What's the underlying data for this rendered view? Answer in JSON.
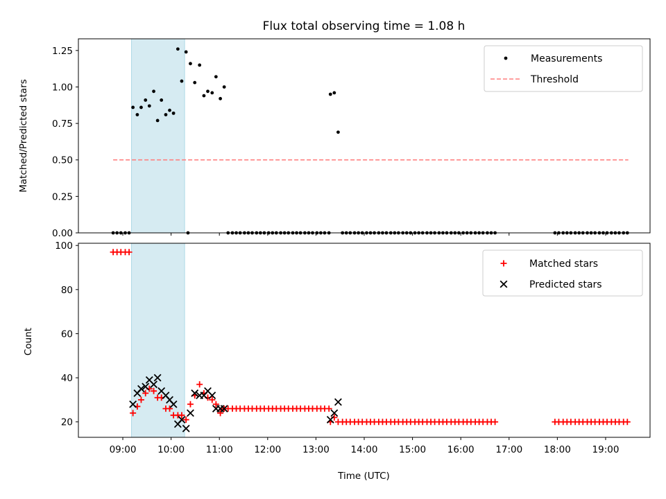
{
  "colors": {
    "shade": "#add8e6",
    "matched": "#ff0000",
    "predicted": "#000000",
    "threshold": "#ff7f7f",
    "measurement": "#000000"
  },
  "chart_data": [
    {
      "type": "scatter",
      "title": "Flux total observing time = 1.08 h",
      "ylabel": "Matched/Predicted stars",
      "ylim": [
        0,
        1.33
      ],
      "yticks": [
        "0.00",
        "0.25",
        "0.50",
        "0.75",
        "1.00",
        "1.25"
      ],
      "shaded_span": [
        9.18,
        10.28
      ],
      "legend_position": "upper right",
      "legend": [
        "Measurements",
        "Threshold"
      ],
      "threshold": {
        "name": "Threshold",
        "value": 0.5,
        "x_range": [
          8.8,
          19.47
        ]
      },
      "series": [
        {
          "name": "Measurements",
          "points": [
            [
              8.8,
              0
            ],
            [
              8.88,
              0
            ],
            [
              8.96,
              0
            ],
            [
              9.05,
              0
            ],
            [
              9.13,
              0
            ],
            [
              9.21,
              0.86
            ],
            [
              9.3,
              0.81
            ],
            [
              9.38,
              0.86
            ],
            [
              9.47,
              0.91
            ],
            [
              9.55,
              0.87
            ],
            [
              9.64,
              0.97
            ],
            [
              9.72,
              0.77
            ],
            [
              9.8,
              0.91
            ],
            [
              9.89,
              0.81
            ],
            [
              9.97,
              0.84
            ],
            [
              10.05,
              0.82
            ],
            [
              10.14,
              1.26
            ],
            [
              10.22,
              1.04
            ],
            [
              10.31,
              1.24
            ],
            [
              10.35,
              0
            ],
            [
              10.4,
              1.16
            ],
            [
              10.49,
              1.03
            ],
            [
              10.59,
              1.15
            ],
            [
              10.68,
              0.94
            ],
            [
              10.76,
              0.97
            ],
            [
              10.85,
              0.96
            ],
            [
              10.93,
              1.07
            ],
            [
              11.02,
              0.92
            ],
            [
              11.1,
              1.0
            ],
            [
              11.18,
              0
            ],
            [
              11.27,
              0
            ],
            [
              11.35,
              0
            ],
            [
              11.43,
              0
            ],
            [
              11.52,
              0
            ],
            [
              11.6,
              0
            ],
            [
              11.68,
              0
            ],
            [
              11.77,
              0
            ],
            [
              11.85,
              0
            ],
            [
              11.93,
              0
            ],
            [
              12.02,
              0
            ],
            [
              12.1,
              0
            ],
            [
              12.18,
              0
            ],
            [
              12.27,
              0
            ],
            [
              12.35,
              0
            ],
            [
              12.43,
              0
            ],
            [
              12.52,
              0
            ],
            [
              12.6,
              0
            ],
            [
              12.68,
              0
            ],
            [
              12.77,
              0
            ],
            [
              12.85,
              0
            ],
            [
              12.93,
              0
            ],
            [
              13.02,
              0
            ],
            [
              13.1,
              0
            ],
            [
              13.18,
              0
            ],
            [
              13.27,
              0
            ],
            [
              13.3,
              0.95
            ],
            [
              13.38,
              0.96
            ],
            [
              13.46,
              0.69
            ],
            [
              13.55,
              0
            ],
            [
              13.63,
              0
            ],
            [
              13.71,
              0
            ],
            [
              13.8,
              0
            ],
            [
              13.88,
              0
            ],
            [
              13.96,
              0
            ],
            [
              14.05,
              0
            ],
            [
              14.13,
              0
            ],
            [
              14.21,
              0
            ],
            [
              14.3,
              0
            ],
            [
              14.38,
              0
            ],
            [
              14.46,
              0
            ],
            [
              14.55,
              0
            ],
            [
              14.63,
              0
            ],
            [
              14.71,
              0
            ],
            [
              14.8,
              0
            ],
            [
              14.88,
              0
            ],
            [
              14.96,
              0
            ],
            [
              15.05,
              0
            ],
            [
              15.13,
              0
            ],
            [
              15.21,
              0
            ],
            [
              15.3,
              0
            ],
            [
              15.38,
              0
            ],
            [
              15.46,
              0
            ],
            [
              15.55,
              0
            ],
            [
              15.63,
              0
            ],
            [
              15.71,
              0
            ],
            [
              15.8,
              0
            ],
            [
              15.88,
              0
            ],
            [
              15.96,
              0
            ],
            [
              16.05,
              0
            ],
            [
              16.13,
              0
            ],
            [
              16.21,
              0
            ],
            [
              16.3,
              0
            ],
            [
              16.38,
              0
            ],
            [
              16.46,
              0
            ],
            [
              16.55,
              0
            ],
            [
              16.63,
              0
            ],
            [
              16.71,
              0
            ],
            [
              17.95,
              0
            ],
            [
              18.03,
              0
            ],
            [
              18.12,
              0
            ],
            [
              18.2,
              0
            ],
            [
              18.28,
              0
            ],
            [
              18.37,
              0
            ],
            [
              18.45,
              0
            ],
            [
              18.53,
              0
            ],
            [
              18.62,
              0
            ],
            [
              18.7,
              0
            ],
            [
              18.78,
              0
            ],
            [
              18.87,
              0
            ],
            [
              18.95,
              0
            ],
            [
              19.03,
              0
            ],
            [
              19.12,
              0
            ],
            [
              19.2,
              0
            ],
            [
              19.28,
              0
            ],
            [
              19.37,
              0
            ],
            [
              19.45,
              0
            ]
          ]
        }
      ]
    },
    {
      "type": "scatter",
      "xlabel": "Time (UTC)",
      "ylabel": "Count",
      "xlim": [
        8.08,
        19.92
      ],
      "ylim": [
        13,
        101
      ],
      "xticks": [
        {
          "label": "09:00",
          "value": 9
        },
        {
          "label": "10:00",
          "value": 10
        },
        {
          "label": "11:00",
          "value": 11
        },
        {
          "label": "12:00",
          "value": 12
        },
        {
          "label": "13:00",
          "value": 13
        },
        {
          "label": "14:00",
          "value": 14
        },
        {
          "label": "15:00",
          "value": 15
        },
        {
          "label": "16:00",
          "value": 16
        },
        {
          "label": "17:00",
          "value": 17
        },
        {
          "label": "18:00",
          "value": 18
        },
        {
          "label": "19:00",
          "value": 19
        }
      ],
      "yticks": [
        "20",
        "40",
        "60",
        "80",
        "100"
      ],
      "shaded_span": [
        9.18,
        10.28
      ],
      "legend_position": "upper right",
      "legend": [
        "Matched stars",
        "Predicted stars"
      ],
      "series": [
        {
          "name": "Matched stars",
          "points": [
            [
              8.8,
              97
            ],
            [
              8.88,
              97
            ],
            [
              8.96,
              97
            ],
            [
              9.05,
              97
            ],
            [
              9.13,
              97
            ],
            [
              9.21,
              24
            ],
            [
              9.3,
              27
            ],
            [
              9.38,
              30
            ],
            [
              9.47,
              33
            ],
            [
              9.55,
              35
            ],
            [
              9.64,
              34
            ],
            [
              9.72,
              31
            ],
            [
              9.8,
              31
            ],
            [
              9.89,
              26
            ],
            [
              9.97,
              26
            ],
            [
              10.05,
              23
            ],
            [
              10.14,
              23
            ],
            [
              10.22,
              23
            ],
            [
              10.31,
              21
            ],
            [
              10.4,
              28
            ],
            [
              10.49,
              32
            ],
            [
              10.59,
              37
            ],
            [
              10.68,
              33
            ],
            [
              10.76,
              31
            ],
            [
              10.85,
              30
            ],
            [
              10.93,
              28
            ],
            [
              11.02,
              24
            ],
            [
              11.1,
              26
            ],
            [
              11.18,
              26
            ],
            [
              11.27,
              26
            ],
            [
              11.35,
              26
            ],
            [
              11.43,
              26
            ],
            [
              11.52,
              26
            ],
            [
              11.6,
              26
            ],
            [
              11.68,
              26
            ],
            [
              11.77,
              26
            ],
            [
              11.85,
              26
            ],
            [
              11.93,
              26
            ],
            [
              12.02,
              26
            ],
            [
              12.1,
              26
            ],
            [
              12.18,
              26
            ],
            [
              12.27,
              26
            ],
            [
              12.35,
              26
            ],
            [
              12.43,
              26
            ],
            [
              12.52,
              26
            ],
            [
              12.6,
              26
            ],
            [
              12.68,
              26
            ],
            [
              12.77,
              26
            ],
            [
              12.85,
              26
            ],
            [
              12.93,
              26
            ],
            [
              13.02,
              26
            ],
            [
              13.1,
              26
            ],
            [
              13.18,
              26
            ],
            [
              13.27,
              26
            ],
            [
              13.3,
              20
            ],
            [
              13.38,
              22
            ],
            [
              13.46,
              20
            ],
            [
              13.55,
              20
            ],
            [
              13.63,
              20
            ],
            [
              13.71,
              20
            ],
            [
              13.8,
              20
            ],
            [
              13.88,
              20
            ],
            [
              13.96,
              20
            ],
            [
              14.05,
              20
            ],
            [
              14.13,
              20
            ],
            [
              14.21,
              20
            ],
            [
              14.3,
              20
            ],
            [
              14.38,
              20
            ],
            [
              14.46,
              20
            ],
            [
              14.55,
              20
            ],
            [
              14.63,
              20
            ],
            [
              14.71,
              20
            ],
            [
              14.8,
              20
            ],
            [
              14.88,
              20
            ],
            [
              14.96,
              20
            ],
            [
              15.05,
              20
            ],
            [
              15.13,
              20
            ],
            [
              15.21,
              20
            ],
            [
              15.3,
              20
            ],
            [
              15.38,
              20
            ],
            [
              15.46,
              20
            ],
            [
              15.55,
              20
            ],
            [
              15.63,
              20
            ],
            [
              15.71,
              20
            ],
            [
              15.8,
              20
            ],
            [
              15.88,
              20
            ],
            [
              15.96,
              20
            ],
            [
              16.05,
              20
            ],
            [
              16.13,
              20
            ],
            [
              16.21,
              20
            ],
            [
              16.3,
              20
            ],
            [
              16.38,
              20
            ],
            [
              16.46,
              20
            ],
            [
              16.55,
              20
            ],
            [
              16.63,
              20
            ],
            [
              16.71,
              20
            ],
            [
              17.95,
              20
            ],
            [
              18.03,
              20
            ],
            [
              18.12,
              20
            ],
            [
              18.2,
              20
            ],
            [
              18.28,
              20
            ],
            [
              18.37,
              20
            ],
            [
              18.45,
              20
            ],
            [
              18.53,
              20
            ],
            [
              18.62,
              20
            ],
            [
              18.7,
              20
            ],
            [
              18.78,
              20
            ],
            [
              18.87,
              20
            ],
            [
              18.95,
              20
            ],
            [
              19.03,
              20
            ],
            [
              19.12,
              20
            ],
            [
              19.2,
              20
            ],
            [
              19.28,
              20
            ],
            [
              19.37,
              20
            ],
            [
              19.45,
              20
            ]
          ]
        },
        {
          "name": "Predicted stars",
          "points": [
            [
              9.21,
              28
            ],
            [
              9.3,
              33
            ],
            [
              9.38,
              35
            ],
            [
              9.47,
              36
            ],
            [
              9.55,
              39
            ],
            [
              9.64,
              37
            ],
            [
              9.72,
              40
            ],
            [
              9.8,
              34
            ],
            [
              9.89,
              32
            ],
            [
              9.97,
              30
            ],
            [
              10.05,
              28
            ],
            [
              10.14,
              19
            ],
            [
              10.22,
              21
            ],
            [
              10.31,
              17
            ],
            [
              10.4,
              24
            ],
            [
              10.49,
              33
            ],
            [
              10.59,
              32
            ],
            [
              10.68,
              32
            ],
            [
              10.76,
              34
            ],
            [
              10.85,
              32
            ],
            [
              10.93,
              26
            ],
            [
              11.02,
              26
            ],
            [
              11.1,
              26
            ],
            [
              13.3,
              21
            ],
            [
              13.38,
              24
            ],
            [
              13.46,
              29
            ]
          ]
        }
      ]
    }
  ]
}
